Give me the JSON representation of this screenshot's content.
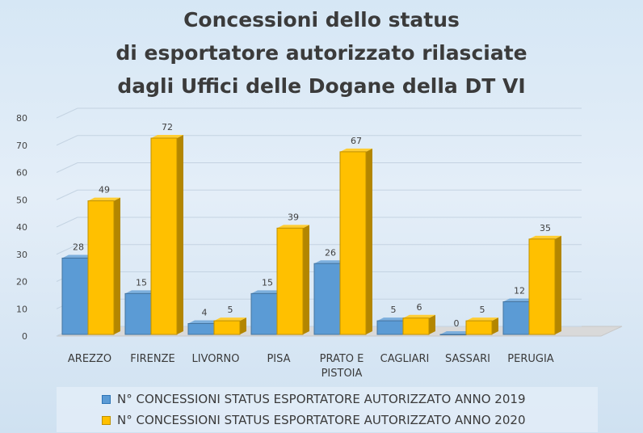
{
  "chart_data": {
    "type": "bar",
    "title_lines": [
      "Concessioni dello status",
      "di esportatore autorizzato rilasciate",
      "dagli Uffici delle Dogane della DT VI"
    ],
    "categories": [
      [
        "AREZZO"
      ],
      [
        "FIRENZE"
      ],
      [
        "LIVORNO"
      ],
      [
        "PISA"
      ],
      [
        "PRATO E",
        "PISTOIA"
      ],
      [
        "CAGLIARI"
      ],
      [
        "SASSARI"
      ],
      [
        "PERUGIA"
      ]
    ],
    "series": [
      {
        "name": "N° CONCESSIONI STATUS ESPORTATORE AUTORIZZATO ANNO 2019",
        "values": [
          28,
          15,
          4,
          15,
          26,
          5,
          0,
          12
        ],
        "labels": [
          "28",
          "15",
          "4",
          "15",
          "26",
          "5",
          "0",
          "12"
        ],
        "color": "#5b9bd5"
      },
      {
        "name": "N° CONCESSIONI STATUS ESPORTATORE AUTORIZZATO ANNO 2020",
        "values": [
          49,
          72,
          5,
          39,
          67,
          6,
          5,
          35
        ],
        "labels": [
          "49",
          "72",
          "5",
          "39",
          "67",
          "6",
          "5",
          "35"
        ],
        "color": "#ffc000"
      }
    ],
    "ylim": [
      0,
      80
    ],
    "yticks": [
      "0",
      "10",
      "20",
      "30",
      "40",
      "50",
      "60",
      "70",
      "80"
    ],
    "grid": true,
    "legend_position": "bottom"
  }
}
